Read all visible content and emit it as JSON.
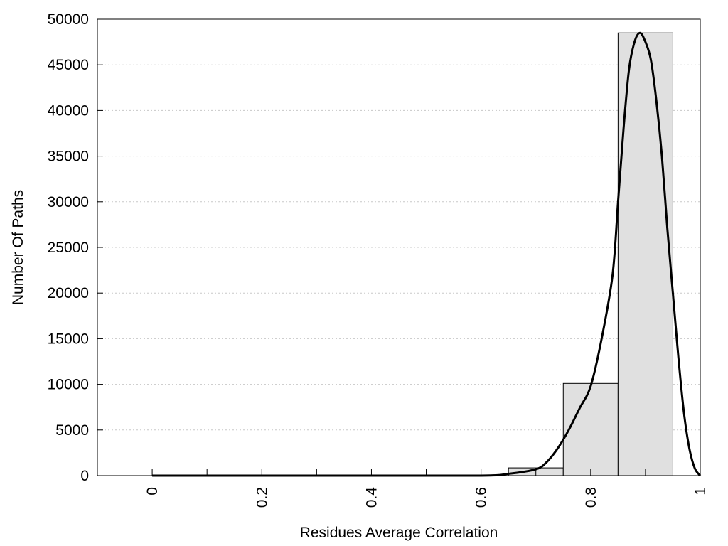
{
  "chart_data": {
    "type": "bar",
    "title": "",
    "xlabel": "Residues Average Correlation",
    "ylabel": "Number Of Paths",
    "xlim": [
      -0.1,
      1.0
    ],
    "ylim": [
      0,
      50000
    ],
    "x_ticks": [
      "0",
      "0.2",
      "0.4",
      "0.6",
      "0.8",
      "1"
    ],
    "x_tick_values": [
      0,
      0.2,
      0.4,
      0.6,
      0.8,
      1
    ],
    "x_minor_ticks": [
      0.1,
      0.3,
      0.5,
      0.7,
      0.9
    ],
    "y_ticks": [
      "0",
      "5000",
      "10000",
      "15000",
      "20000",
      "25000",
      "30000",
      "35000",
      "40000",
      "45000",
      "50000"
    ],
    "y_tick_values": [
      0,
      5000,
      10000,
      15000,
      20000,
      25000,
      30000,
      35000,
      40000,
      45000,
      50000
    ],
    "grid": "horizontal dotted",
    "bars": [
      {
        "x_start": 0.65,
        "x_end": 0.75,
        "value": 850
      },
      {
        "x_start": 0.75,
        "x_end": 0.85,
        "value": 10100
      },
      {
        "x_start": 0.85,
        "x_end": 0.95,
        "value": 48500
      }
    ],
    "fit_curve": {
      "x": [
        0,
        0.2,
        0.4,
        0.6,
        0.65,
        0.7,
        0.72,
        0.74,
        0.76,
        0.78,
        0.8,
        0.82,
        0.84,
        0.85,
        0.86,
        0.87,
        0.88,
        0.89,
        0.9,
        0.91,
        0.92,
        0.93,
        0.94,
        0.95,
        0.96,
        0.97,
        0.98,
        0.99,
        1.0
      ],
      "y": [
        0,
        0,
        0,
        0,
        200,
        700,
        1500,
        3000,
        5000,
        7400,
        9800,
        15000,
        22000,
        30000,
        38000,
        44500,
        47500,
        48500,
        47500,
        45500,
        41000,
        35000,
        27000,
        20000,
        13000,
        7000,
        3000,
        800,
        0
      ]
    },
    "colors": {
      "bar_fill": "#e0e0e0",
      "bar_stroke": "#000000",
      "curve": "#000000",
      "grid": "#c8c8c8"
    }
  }
}
